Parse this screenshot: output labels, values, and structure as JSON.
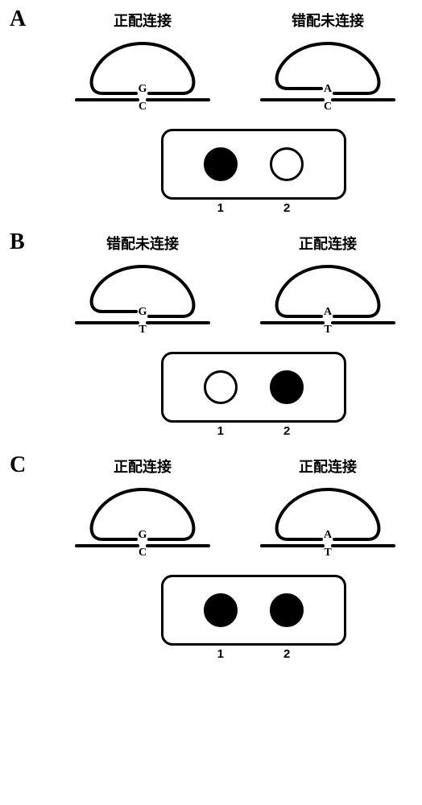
{
  "panels": [
    {
      "letter": "A",
      "left": {
        "title": "正配连接",
        "connected": true,
        "upper_base": "G",
        "lower_base": "C"
      },
      "right": {
        "title": "错配未连接",
        "connected": false,
        "upper_base": "A",
        "lower_base": "C"
      },
      "dots": [
        "filled",
        "open"
      ],
      "nums": [
        "1",
        "2"
      ]
    },
    {
      "letter": "B",
      "left": {
        "title": "错配未连接",
        "connected": false,
        "upper_base": "G",
        "lower_base": "T"
      },
      "right": {
        "title": "正配连接",
        "connected": true,
        "upper_base": "A",
        "lower_base": "T"
      },
      "dots": [
        "open",
        "filled"
      ],
      "nums": [
        "1",
        "2"
      ]
    },
    {
      "letter": "C",
      "left": {
        "title": "正配连接",
        "connected": true,
        "upper_base": "G",
        "lower_base": "C"
      },
      "right": {
        "title": "正配连接",
        "connected": true,
        "upper_base": "A",
        "lower_base": "T"
      },
      "dots": [
        "filled",
        "filled"
      ],
      "nums": [
        "1",
        "2"
      ]
    }
  ],
  "style": {
    "stroke_color": "#000000",
    "stroke_width_thick": 4,
    "stroke_width_thin": 3,
    "background": "#ffffff",
    "title_fontsize": 18,
    "letter_fontsize": 28,
    "base_fontsize": 14,
    "num_fontsize": 15,
    "dot_diameter": 42,
    "box_radius": 14
  }
}
